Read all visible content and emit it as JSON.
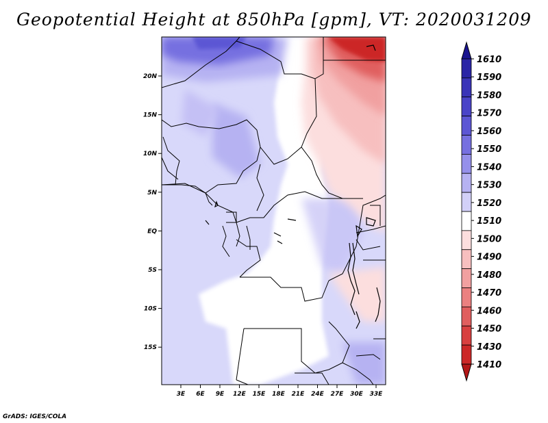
{
  "title": "Geopotential Height at 850hPa [gpm], VT: 2020031209",
  "footer": "GrADS: IGES/COLA",
  "map": {
    "variable": "Geopotential Height",
    "level": "850hPa",
    "units": "gpm",
    "valid_time": "2020031209",
    "lon_labels": [
      "3E",
      "6E",
      "9E",
      "12E",
      "15E",
      "18E",
      "21E",
      "24E",
      "27E",
      "30E",
      "33E"
    ],
    "lat_labels": [
      "20N",
      "15N",
      "10N",
      "5N",
      "EQ",
      "5S",
      "10S",
      "15S"
    ]
  },
  "colorbar": {
    "labels": [
      "1610",
      "1590",
      "1580",
      "1570",
      "1560",
      "1550",
      "1540",
      "1530",
      "1520",
      "1510",
      "1500",
      "1490",
      "1480",
      "1470",
      "1460",
      "1450",
      "1430",
      "1410"
    ],
    "colors": [
      "#1a1490",
      "#2a24a6",
      "#3a34b8",
      "#4a44c8",
      "#5c56d4",
      "#7670e0",
      "#9590ea",
      "#b6b2f2",
      "#d2d0f8",
      "#ffffff",
      "#fcdede",
      "#f7bfbf",
      "#f1a0a0",
      "#ea8080",
      "#e05e5e",
      "#d84040",
      "#cc2828",
      "#b41818"
    ]
  }
}
